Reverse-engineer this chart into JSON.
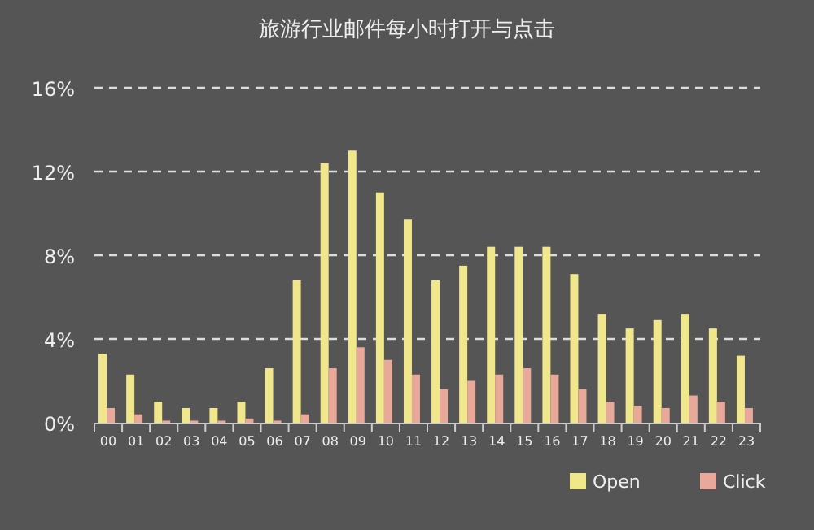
{
  "chart_data": {
    "type": "bar",
    "title": "旅游行业邮件每小时打开与点击",
    "categories": [
      "00",
      "01",
      "02",
      "03",
      "04",
      "05",
      "06",
      "07",
      "08",
      "09",
      "10",
      "11",
      "12",
      "13",
      "14",
      "15",
      "16",
      "17",
      "18",
      "19",
      "20",
      "21",
      "22",
      "23"
    ],
    "series": [
      {
        "name": "Open",
        "color": "#f0e68c",
        "values": [
          3.3,
          2.3,
          1.0,
          0.7,
          0.7,
          1.0,
          2.6,
          6.8,
          12.4,
          13.0,
          11.0,
          9.7,
          6.8,
          7.5,
          8.4,
          8.4,
          8.4,
          7.1,
          5.2,
          4.5,
          4.9,
          5.2,
          4.5,
          3.2
        ]
      },
      {
        "name": "Click",
        "color": "#e8a89a",
        "values": [
          0.7,
          0.4,
          0.1,
          0.1,
          0.1,
          0.2,
          0.1,
          0.4,
          2.6,
          3.6,
          3.0,
          2.3,
          1.6,
          2.0,
          2.3,
          2.6,
          2.3,
          1.6,
          1.0,
          0.8,
          0.7,
          1.3,
          1.0,
          0.7
        ]
      }
    ],
    "ylim": [
      0,
      16
    ],
    "yticks": [
      {
        "value": 0,
        "label": "0%"
      },
      {
        "value": 4,
        "label": "4%"
      },
      {
        "value": 8,
        "label": "8%"
      },
      {
        "value": 12,
        "label": "12%"
      },
      {
        "value": 16,
        "label": "16%"
      }
    ],
    "grid": "y",
    "legend": "bottom right"
  }
}
